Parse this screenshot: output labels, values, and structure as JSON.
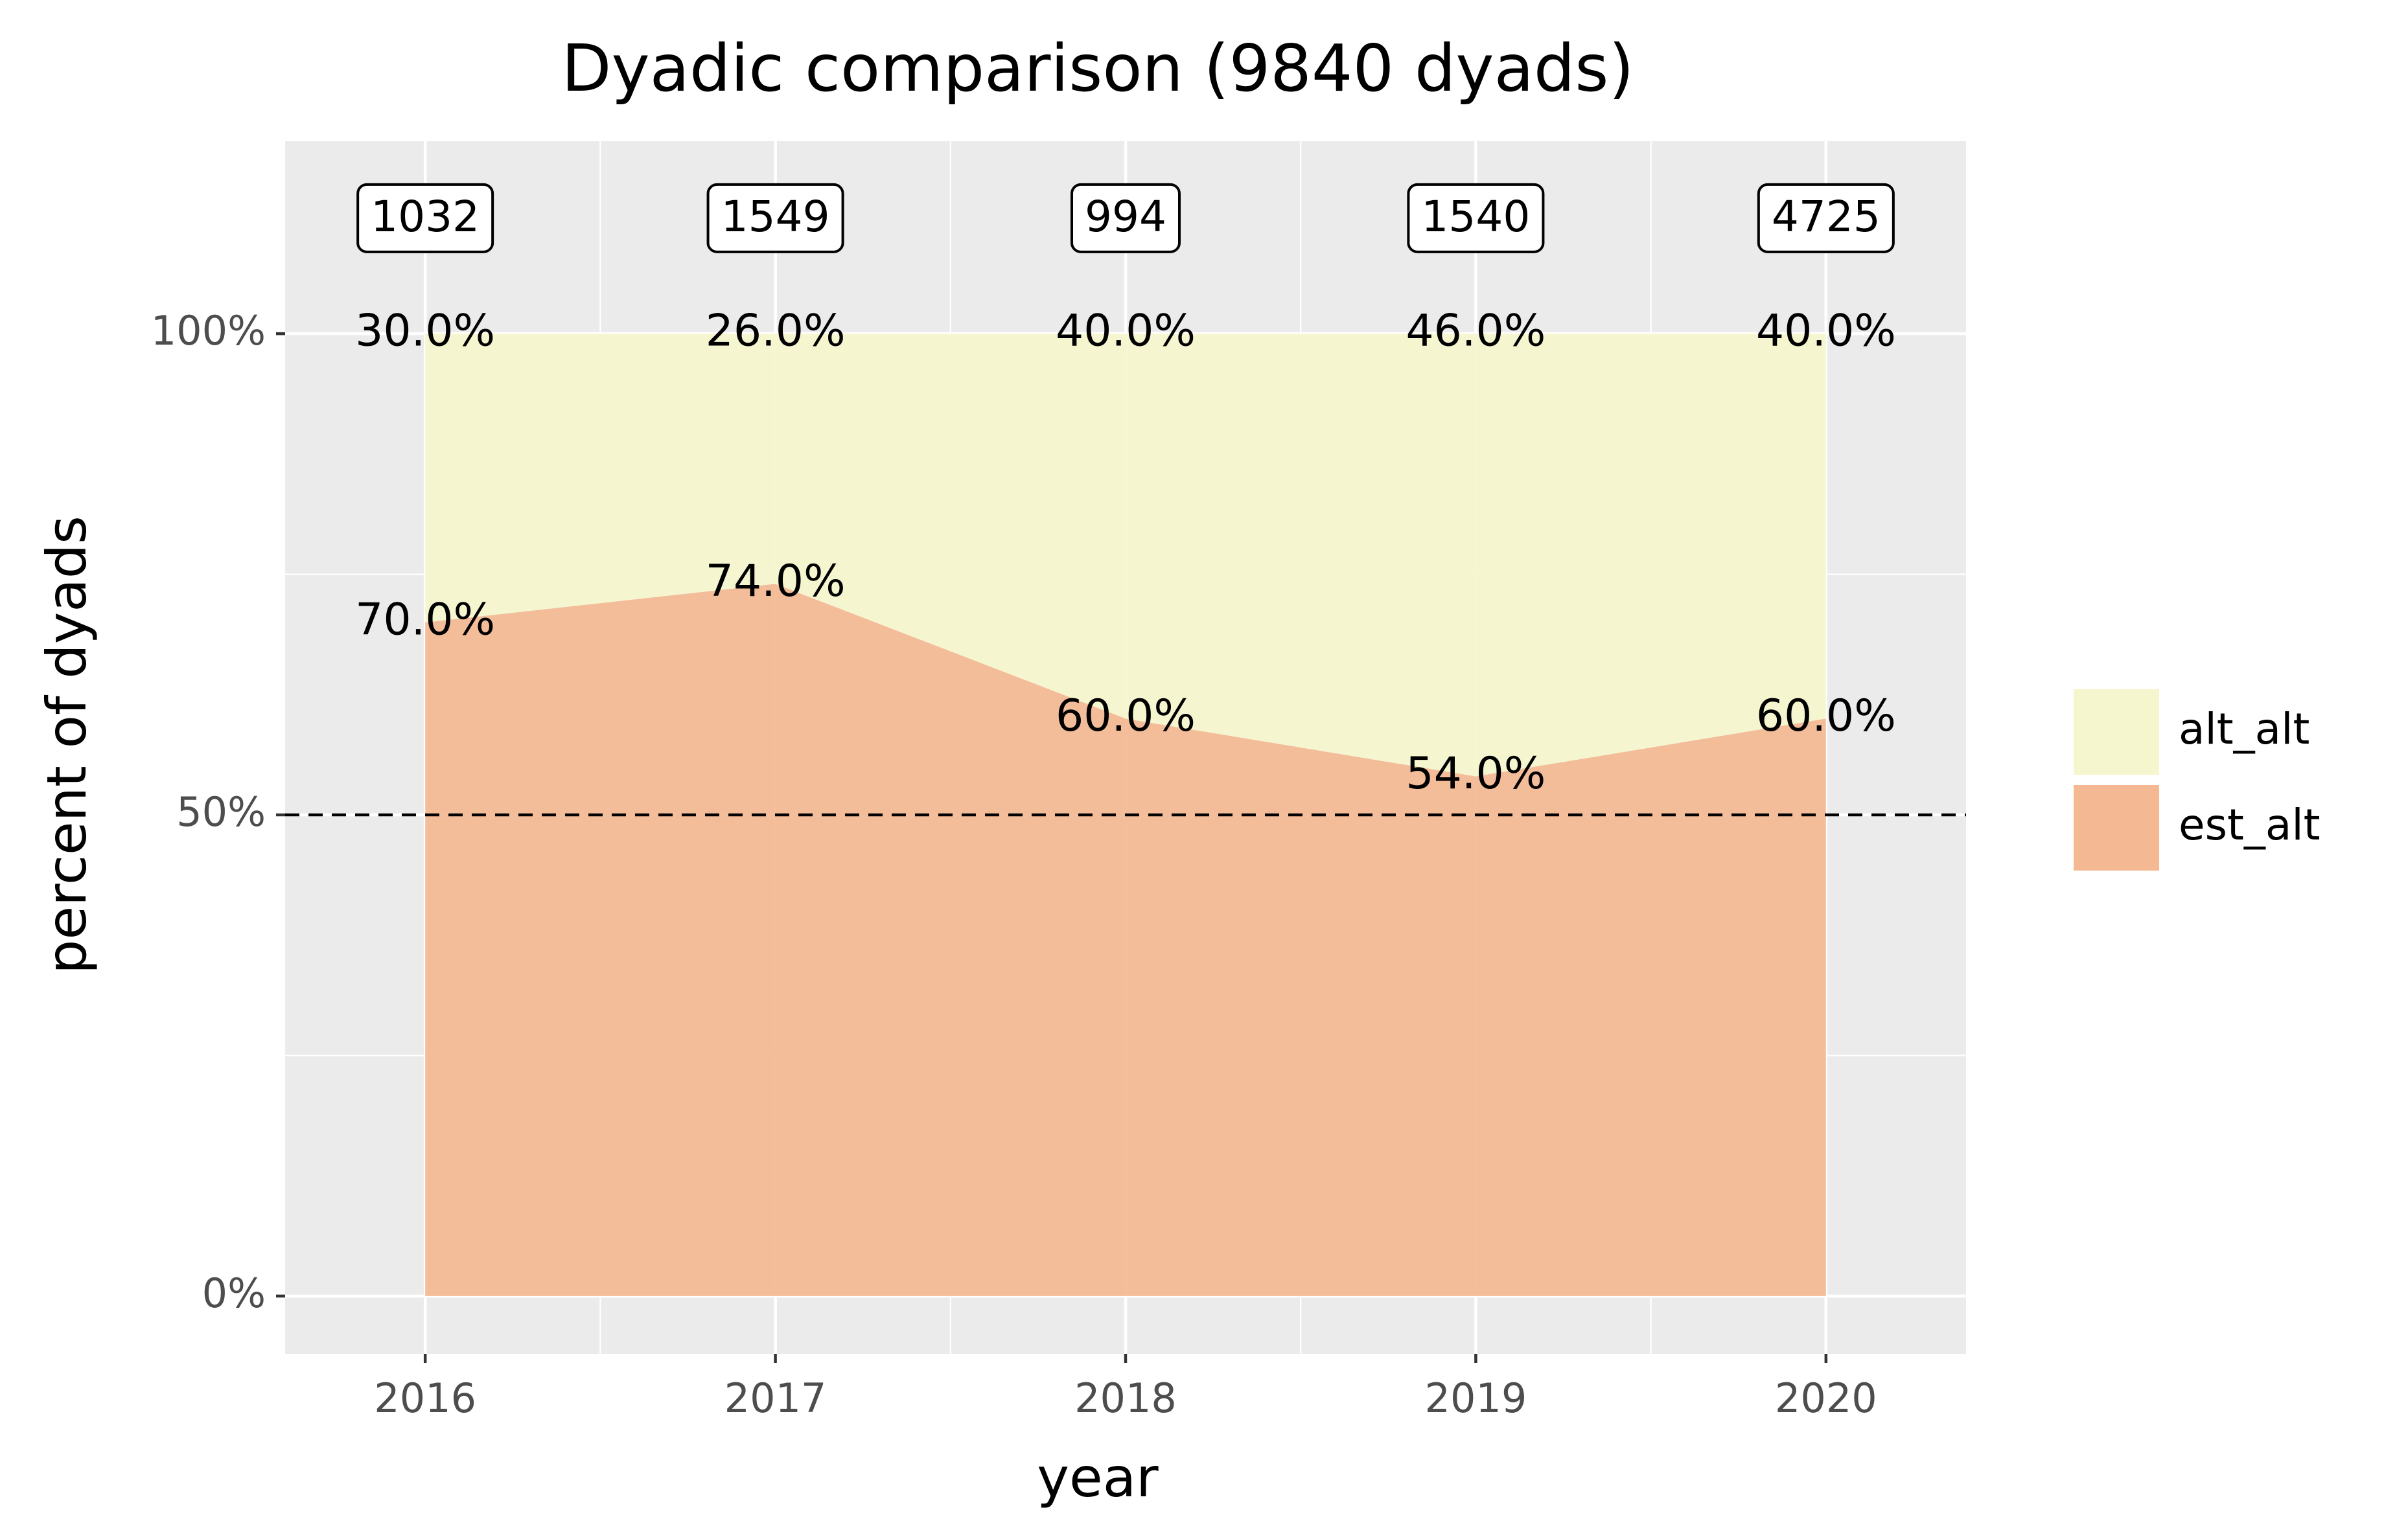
{
  "chart_data": {
    "type": "area",
    "title": "Dyadic comparison (9840 dyads)",
    "xlabel": "year",
    "ylabel": "percent of dyads",
    "x": [
      2016,
      2017,
      2018,
      2019,
      2020
    ],
    "x_tick_labels": [
      "2016",
      "2017",
      "2018",
      "2019",
      "2020"
    ],
    "y_tick_labels": [
      "0%",
      "50%",
      "100%"
    ],
    "y_ticks": [
      0,
      50,
      100
    ],
    "ylim": [
      -6,
      120
    ],
    "xlim": [
      2015.6,
      2020.4
    ],
    "stacked": true,
    "series": [
      {
        "name": "est_alt",
        "values": [
          70.0,
          74.0,
          60.0,
          54.0,
          60.0
        ],
        "labels": [
          "70.0%",
          "74.0%",
          "60.0%",
          "54.0%",
          "60.0%"
        ],
        "color": "#f4b992"
      },
      {
        "name": "alt_alt",
        "values": [
          30.0,
          26.0,
          40.0,
          46.0,
          40.0
        ],
        "labels": [
          "30.0%",
          "26.0%",
          "40.0%",
          "46.0%",
          "40.0%"
        ],
        "color": "#f5f6cd"
      }
    ],
    "counts": [
      "1032",
      "1549",
      "994",
      "1540",
      "4725"
    ],
    "count_level": 112,
    "reference_line": 50,
    "legend": {
      "placement": "right",
      "entries": [
        "alt_alt",
        "est_alt"
      ]
    },
    "grid": true
  }
}
